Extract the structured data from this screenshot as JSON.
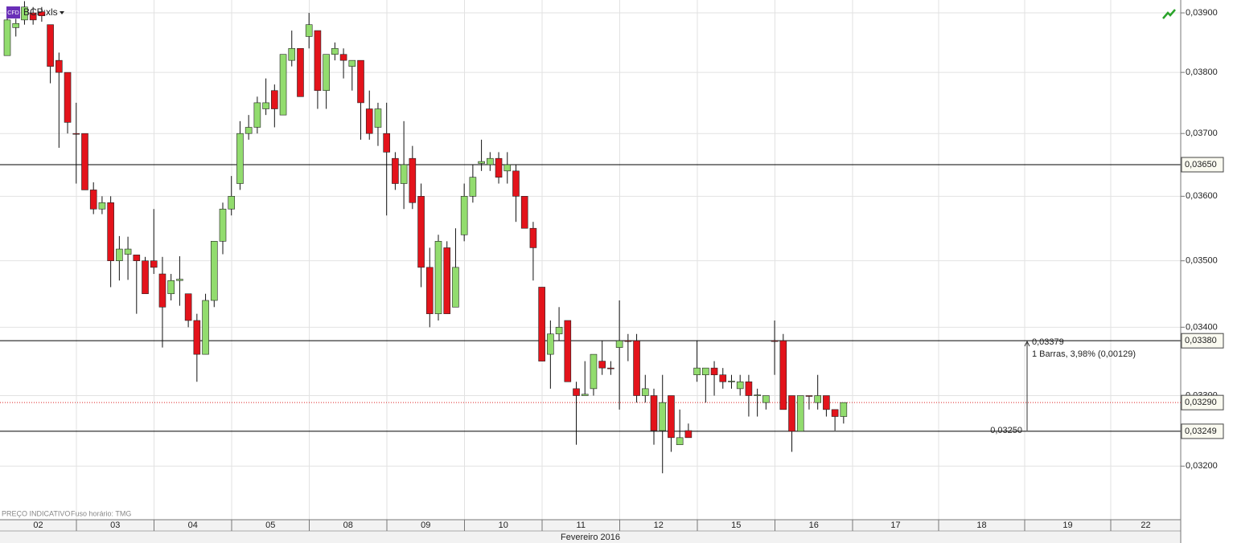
{
  "chart_data": {
    "type": "candlestick",
    "title": "BCP:xls",
    "badge": "CFD",
    "log": true,
    "grid": true,
    "up_color": "#92dc6e",
    "down_color": "#e3131b",
    "ylim": [
      0.03126,
      0.03922
    ],
    "yticks": [
      {
        "value": 0.032,
        "label": "0,03200"
      },
      {
        "value": 0.033,
        "label": "0,03300"
      },
      {
        "value": 0.034,
        "label": "0,03400"
      },
      {
        "value": 0.035,
        "label": "0,03500"
      },
      {
        "value": 0.036,
        "label": "0,03600"
      },
      {
        "value": 0.037,
        "label": "0,03700"
      },
      {
        "value": 0.038,
        "label": "0,03800"
      },
      {
        "value": 0.039,
        "label": "0,03900"
      }
    ],
    "open": [
      0.03828,
      0.03875,
      0.03888,
      0.039,
      0.03902,
      0.0388,
      0.0382,
      0.038,
      0.037,
      0.037,
      0.0361,
      0.0358,
      0.0359,
      0.035,
      0.0351,
      0.03509,
      0.035,
      0.035,
      0.0348,
      0.0345,
      0.0347,
      0.0345,
      0.0341,
      0.0336,
      0.0344,
      0.0353,
      0.0358,
      0.0362,
      0.037,
      0.0371,
      0.0374,
      0.0377,
      0.0373,
      0.0382,
      0.0384,
      0.0386,
      0.0387,
      0.0377,
      0.0383,
      0.0383,
      0.0381,
      0.0382,
      0.0374,
      0.0371,
      0.037,
      0.0366,
      0.0362,
      0.0366,
      0.036,
      0.0349,
      0.0342,
      0.0352,
      0.0343,
      0.0354,
      0.036,
      0.03652,
      0.0365,
      0.0366,
      0.0364,
      0.0364,
      0.036,
      0.0355,
      0.0346,
      0.0336,
      0.0339,
      0.0341,
      0.0331,
      0.033,
      0.0331,
      0.0335,
      0.0334,
      0.0337,
      0.0338,
      0.0338,
      0.033,
      0.033,
      0.0325,
      0.033,
      0.0323,
      0.0325,
      0.0333,
      0.0333,
      0.0334,
      0.0333,
      0.0332,
      0.0331,
      0.0332,
      0.033,
      0.0329,
      0.0338,
      0.0338,
      0.033,
      0.03249,
      0.033,
      0.0329,
      0.033,
      0.0328,
      0.0327
    ],
    "high": [
      0.039,
      0.0389,
      0.0392,
      0.0391,
      0.0391,
      0.0388,
      0.03833,
      0.038,
      0.0375,
      0.037,
      0.03622,
      0.036,
      0.036,
      0.03538,
      0.03537,
      0.03509,
      0.03506,
      0.0358,
      0.03506,
      0.0348,
      0.03507,
      0.0345,
      0.0342,
      0.0345,
      0.0353,
      0.0359,
      0.03632,
      0.0372,
      0.0373,
      0.0376,
      0.0379,
      0.0378,
      0.0383,
      0.0387,
      0.0384,
      0.039,
      0.0387,
      0.0383,
      0.0385,
      0.0384,
      0.0382,
      0.0382,
      0.0377,
      0.0375,
      0.0375,
      0.0367,
      0.0372,
      0.0368,
      0.0362,
      0.0352,
      0.0354,
      0.0353,
      0.0355,
      0.0362,
      0.0365,
      0.0369,
      0.0367,
      0.0367,
      0.0367,
      0.0365,
      0.036,
      0.0356,
      0.0346,
      0.0341,
      0.0343,
      0.0341,
      0.0332,
      0.0335,
      0.0336,
      0.0338,
      0.0335,
      0.0344,
      0.0339,
      0.0339,
      0.0333,
      0.0331,
      0.0333,
      0.033,
      0.0328,
      0.0326,
      0.0338,
      0.0334,
      0.0335,
      0.0334,
      0.0333,
      0.0333,
      0.0333,
      0.0331,
      0.033,
      0.0341,
      0.0339,
      0.033,
      0.033,
      0.033,
      0.0333,
      0.033,
      0.0328,
      0.0329
    ],
    "low": [
      0.03828,
      0.0386,
      0.0388,
      0.0388,
      0.03885,
      0.03782,
      0.03677,
      0.037,
      0.0362,
      0.0361,
      0.03572,
      0.03572,
      0.0346,
      0.0347,
      0.03471,
      0.0342,
      0.0345,
      0.0348,
      0.0337,
      0.0344,
      0.03432,
      0.034,
      0.0332,
      0.0336,
      0.0343,
      0.0351,
      0.0357,
      0.0361,
      0.0369,
      0.037,
      0.0373,
      0.0371,
      0.0373,
      0.0381,
      0.0376,
      0.0384,
      0.0374,
      0.0374,
      0.0382,
      0.0379,
      0.0377,
      0.0369,
      0.0369,
      0.0368,
      0.0357,
      0.0361,
      0.0358,
      0.0358,
      0.0346,
      0.034,
      0.0341,
      0.0342,
      0.0343,
      0.0353,
      0.0359,
      0.0364,
      0.0364,
      0.0362,
      0.0362,
      0.0356,
      0.0355,
      0.0347,
      0.0335,
      0.0331,
      0.0338,
      0.0332,
      0.0323,
      0.033,
      0.033,
      0.0333,
      0.0333,
      0.0328,
      0.0335,
      0.0329,
      0.0329,
      0.0323,
      0.0319,
      0.0322,
      0.0323,
      0.0324,
      0.0332,
      0.0329,
      0.033,
      0.0331,
      0.0331,
      0.033,
      0.0327,
      0.0327,
      0.0328,
      0.0333,
      0.0328,
      0.0322,
      0.03249,
      0.0328,
      0.0328,
      0.0327,
      0.0325,
      0.0326
    ],
    "close": [
      0.03888,
      0.03882,
      0.0391,
      0.03888,
      0.03895,
      0.0381,
      0.038,
      0.03718,
      0.03699,
      0.0361,
      0.0358,
      0.0359,
      0.035,
      0.03518,
      0.03518,
      0.035,
      0.0345,
      0.0349,
      0.0343,
      0.0347,
      0.03472,
      0.0341,
      0.0336,
      0.0344,
      0.0353,
      0.0358,
      0.036,
      0.037,
      0.0371,
      0.0375,
      0.0375,
      0.0374,
      0.0383,
      0.0384,
      0.0376,
      0.0388,
      0.0377,
      0.0383,
      0.0384,
      0.0382,
      0.0382,
      0.0375,
      0.037,
      0.0374,
      0.0367,
      0.0362,
      0.0365,
      0.0359,
      0.0349,
      0.0342,
      0.0353,
      0.0342,
      0.0349,
      0.036,
      0.0363,
      0.03655,
      0.0366,
      0.0363,
      0.0365,
      0.036,
      0.0355,
      0.0352,
      0.0335,
      0.0339,
      0.034,
      0.0332,
      0.033,
      0.03302,
      0.0336,
      0.0334,
      0.03339,
      0.0338,
      0.03379,
      0.033,
      0.0331,
      0.0325,
      0.0329,
      0.0324,
      0.0324,
      0.0324,
      0.0334,
      0.0334,
      0.0333,
      0.0332,
      0.03321,
      0.0332,
      0.033,
      0.03301,
      0.033,
      0.03379,
      0.0328,
      0.03249,
      0.033,
      0.03299,
      0.033,
      0.0328,
      0.0327,
      0.0329
    ],
    "levels": [
      {
        "value": 0.0365,
        "label": "0,03650"
      },
      {
        "value": 0.0338,
        "label": "0,03380"
      },
      {
        "value": 0.03249,
        "label": "0,03249"
      }
    ],
    "last_price": {
      "value": 0.0329,
      "label": "0,03290"
    },
    "measure": {
      "from": {
        "value": 0.0325,
        "label": "0,03250"
      },
      "to": {
        "value": 0.03379,
        "label": "0,03379"
      },
      "text": "1 Barras, 3,98% (0,00129)"
    },
    "days": [
      "02",
      "03",
      "04",
      "05",
      "08",
      "09",
      "10",
      "11",
      "12",
      "15",
      "16",
      "17",
      "18",
      "19",
      "22"
    ],
    "x_axis_label": "Fevereiro 2016",
    "footer": [
      "PREÇO INDICATIVO",
      "Fuso horário: TMG"
    ]
  }
}
